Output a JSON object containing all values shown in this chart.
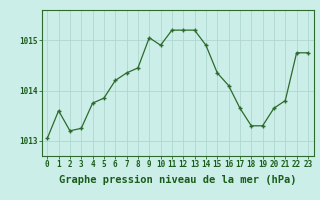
{
  "x": [
    0,
    1,
    2,
    3,
    4,
    5,
    6,
    7,
    8,
    9,
    10,
    11,
    12,
    13,
    14,
    15,
    16,
    17,
    18,
    19,
    20,
    21,
    22,
    23
  ],
  "y": [
    1013.05,
    1013.6,
    1013.2,
    1013.25,
    1013.75,
    1013.85,
    1014.2,
    1014.35,
    1014.45,
    1015.05,
    1014.9,
    1015.2,
    1015.2,
    1015.2,
    1014.9,
    1014.35,
    1014.1,
    1013.65,
    1013.3,
    1013.3,
    1013.65,
    1013.8,
    1014.75,
    1014.75
  ],
  "line_color": "#2d6a2d",
  "marker": "+",
  "background_color": "#cceee8",
  "grid_color": "#b0d8d0",
  "title": "Graphe pression niveau de la mer (hPa)",
  "title_color": "#1a5c1a",
  "title_fontsize": 7.5,
  "ylim": [
    1012.7,
    1015.6
  ],
  "xlim": [
    -0.5,
    23.5
  ],
  "yticks": [
    1013,
    1014,
    1015
  ],
  "xticks": [
    0,
    1,
    2,
    3,
    4,
    5,
    6,
    7,
    8,
    9,
    10,
    11,
    12,
    13,
    14,
    15,
    16,
    17,
    18,
    19,
    20,
    21,
    22,
    23
  ],
  "tick_color": "#1a5c1a",
  "tick_fontsize": 5.5,
  "border_color": "#2d6a2d",
  "marker_size": 3.5,
  "line_width": 0.9
}
